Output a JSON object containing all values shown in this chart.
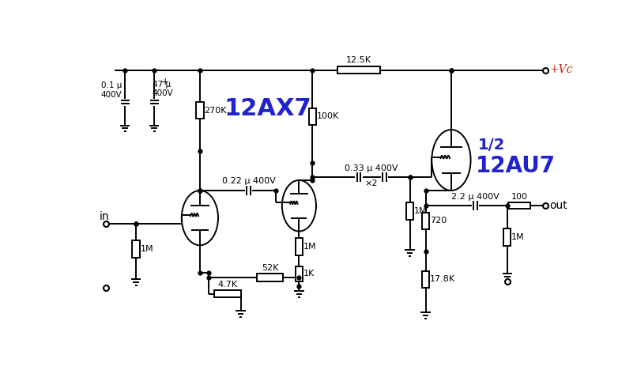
{
  "bg_color": "#ffffff",
  "line_color": "#000000",
  "blue_color": "#2222cc",
  "red_color": "#cc2200",
  "lw": 1.4,
  "components": {
    "C1_label": "0.1 μ\n400V",
    "C2_label": "47 μ\n400V",
    "C2_plus": "+",
    "R270K": "270K",
    "R100K": "100K",
    "R12_5K": "12.5K",
    "C033_label": "0.33 μ 400V",
    "C033_x2": "×2",
    "C022_label": "0.22 μ 400V",
    "R1M_a": "1M",
    "R1M_b": "1M",
    "R1K": "1K",
    "R52K": "52K",
    "R4_7K": "4.7K",
    "R1M_c": "1M",
    "R720": "720",
    "R17_8K": "17.8K",
    "C22_label": "2.2 μ 400V",
    "R100": "100",
    "R1M_d": "1M",
    "Rin": "1M",
    "label_12AX7": "12AX7",
    "label_half": "1/2",
    "label_12AU7": "12AU7",
    "label_in": "in",
    "label_out": "out",
    "label_Vc": "+Vc"
  }
}
